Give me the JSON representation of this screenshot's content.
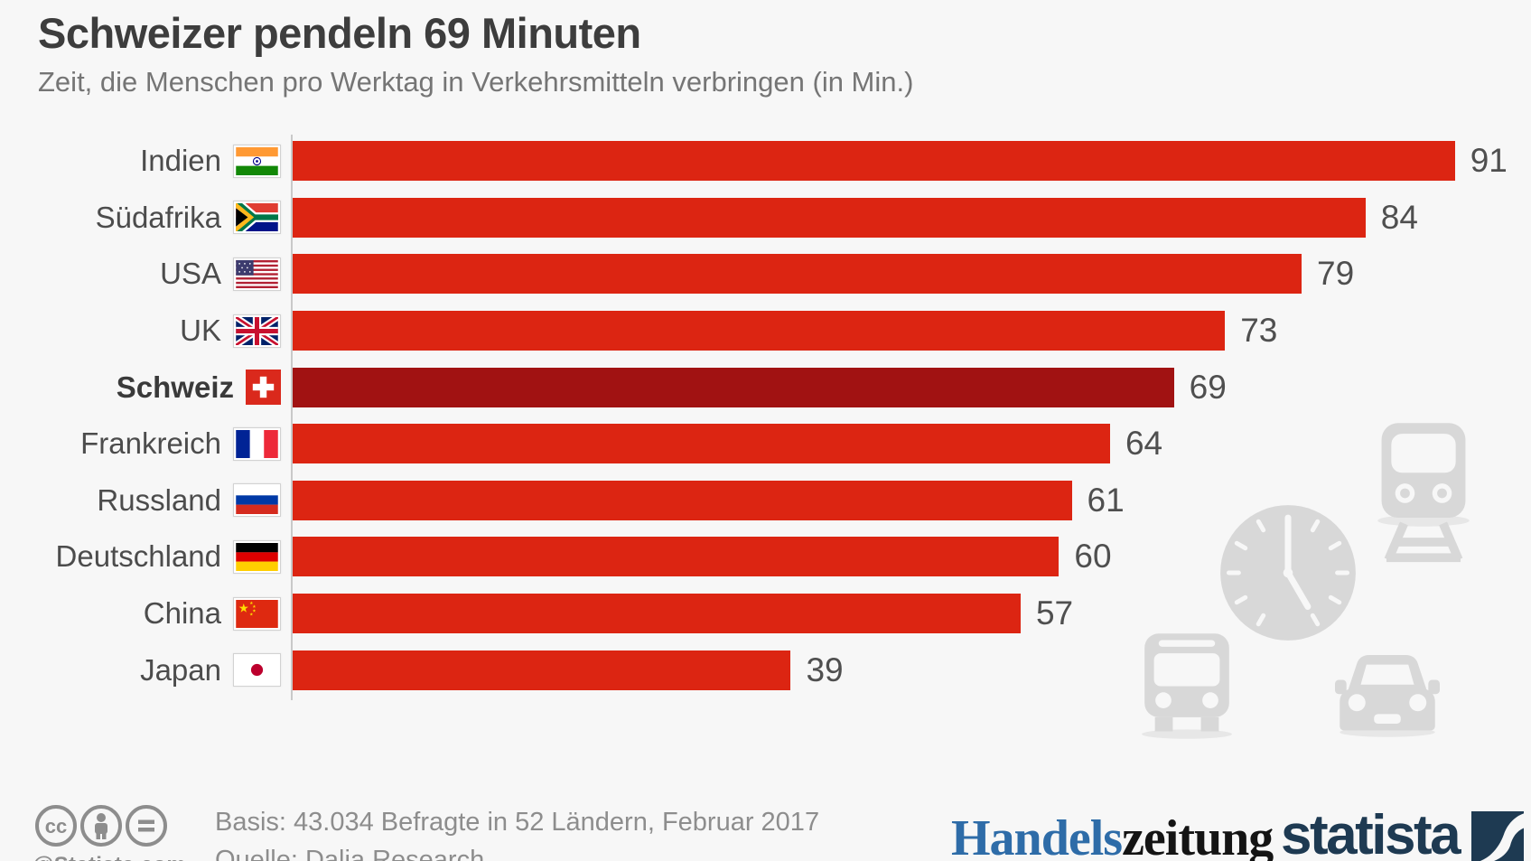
{
  "header": {
    "title": "Schweizer pendeln 69 Minuten",
    "subtitle": "Zeit, die Menschen pro Werktag in Verkehrsmitteln verbringen (in Min.)"
  },
  "chart_data": {
    "type": "bar",
    "orientation": "horizontal",
    "title": "Schweizer pendeln 69 Minuten",
    "subtitle": "Zeit, die Menschen pro Werktag in Verkehrsmitteln verbringen (in Min.)",
    "unit": "Minuten pro Werktag",
    "xlim": [
      0,
      97
    ],
    "grid": false,
    "legend": false,
    "categories": [
      "Indien",
      "Südafrika",
      "USA",
      "UK",
      "Schweiz",
      "Frankreich",
      "Russland",
      "Deutschland",
      "China",
      "Japan"
    ],
    "values": [
      91,
      84,
      79,
      73,
      69,
      64,
      61,
      60,
      57,
      39
    ],
    "highlighted_category": "Schweiz",
    "rows": [
      {
        "country": "Indien",
        "flag": "in",
        "value": 91,
        "highlight": false
      },
      {
        "country": "Südafrika",
        "flag": "za",
        "value": 84,
        "highlight": false
      },
      {
        "country": "USA",
        "flag": "us",
        "value": 79,
        "highlight": false
      },
      {
        "country": "UK",
        "flag": "gb",
        "value": 73,
        "highlight": false
      },
      {
        "country": "Schweiz",
        "flag": "ch",
        "value": 69,
        "highlight": true
      },
      {
        "country": "Frankreich",
        "flag": "fr",
        "value": 64,
        "highlight": false
      },
      {
        "country": "Russland",
        "flag": "ru",
        "value": 61,
        "highlight": false
      },
      {
        "country": "Deutschland",
        "flag": "de",
        "value": 60,
        "highlight": false
      },
      {
        "country": "China",
        "flag": "cn",
        "value": 57,
        "highlight": false
      },
      {
        "country": "Japan",
        "flag": "jp",
        "value": 39,
        "highlight": false
      }
    ]
  },
  "colors": {
    "bar": "#dc2512",
    "bar_highlight": "#a11212",
    "background": "#f7f7f7",
    "handelszeitung_blue": "#2e6ca8",
    "statista_navy": "#1e3a52",
    "bg_icon_gray": "#d8d8d8"
  },
  "footer": {
    "attribution": "@Statista.com",
    "basis": "Basis: 43.034 Befragte in 52 Ländern, Februar 2017",
    "source": "Quelle: Dalia Research",
    "brand_left": {
      "part1": "Handels",
      "part2": "zeitung"
    },
    "brand_right": "statista"
  }
}
